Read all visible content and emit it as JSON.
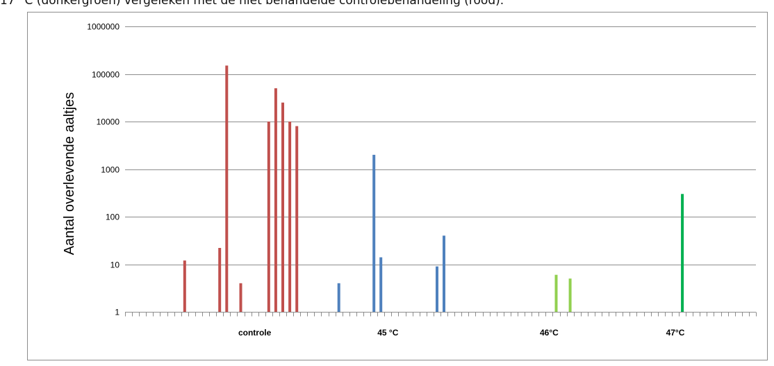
{
  "caption": "17 °C (donkergroen) vergeleken met de niet behandelde controlebehandeling (rood).",
  "chart_data": {
    "type": "bar",
    "title": "",
    "xlabel": "",
    "ylabel": "Aantal overlevende aaltjes",
    "yscale": "log",
    "ylim": [
      1,
      1000000
    ],
    "y_ticks": [
      "1",
      "10",
      "100",
      "1000",
      "10000",
      "100000",
      "1000000"
    ],
    "grid": true,
    "legend": "none",
    "slot_count": 90,
    "categories": [
      {
        "label": "controle",
        "slot": 18
      },
      {
        "label": "45 °C",
        "slot": 37
      },
      {
        "label": "46°C",
        "slot": 60
      },
      {
        "label": "47°C",
        "slot": 78
      }
    ],
    "series": [
      {
        "color": "#c0504d",
        "points": [
          {
            "slot": 8,
            "value": 12
          },
          {
            "slot": 13,
            "value": 22
          },
          {
            "slot": 14,
            "value": 150000
          },
          {
            "slot": 16,
            "value": 4
          },
          {
            "slot": 20,
            "value": 10000
          },
          {
            "slot": 21,
            "value": 50000
          },
          {
            "slot": 22,
            "value": 25000
          },
          {
            "slot": 23,
            "value": 10000
          },
          {
            "slot": 24,
            "value": 8000
          }
        ]
      },
      {
        "color": "#4f81bd",
        "points": [
          {
            "slot": 30,
            "value": 4
          },
          {
            "slot": 35,
            "value": 2000
          },
          {
            "slot": 36,
            "value": 14
          },
          {
            "slot": 44,
            "value": 9
          },
          {
            "slot": 45,
            "value": 40
          }
        ]
      },
      {
        "color": "#92d050",
        "points": [
          {
            "slot": 61,
            "value": 6
          },
          {
            "slot": 63,
            "value": 5
          }
        ]
      },
      {
        "color": "#00b050",
        "points": [
          {
            "slot": 79,
            "value": 300
          }
        ]
      }
    ]
  }
}
